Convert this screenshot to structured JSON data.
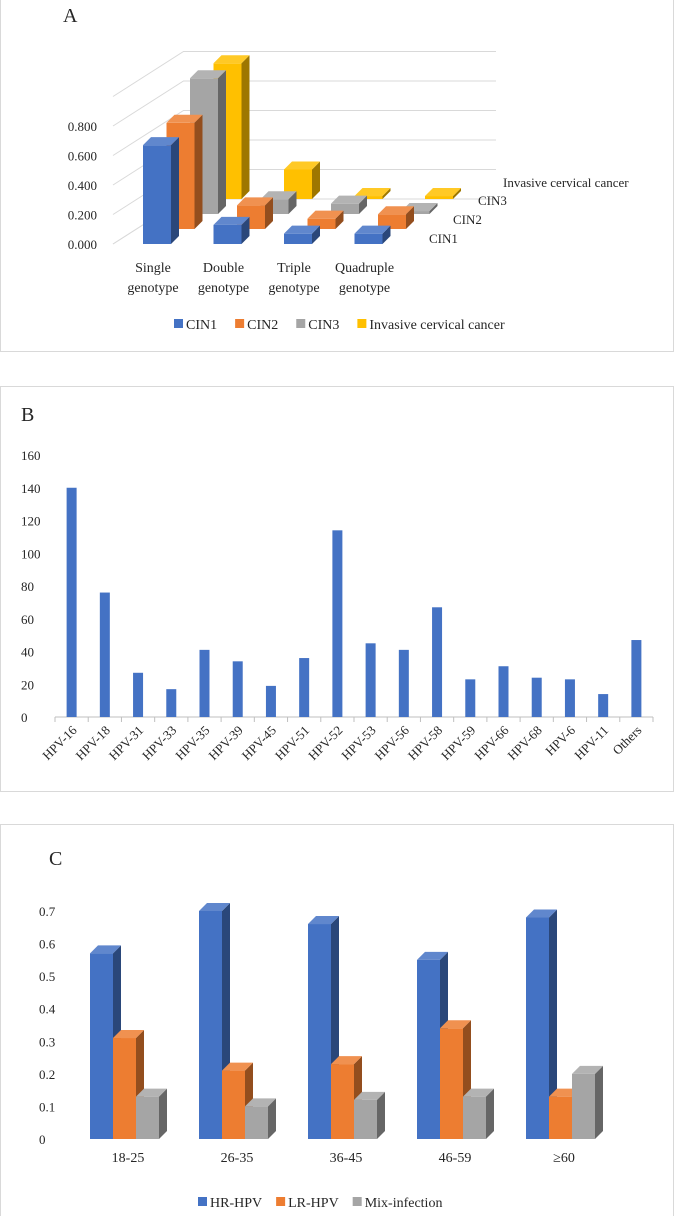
{
  "panels": {
    "a_label": "A",
    "b_label": "B",
    "c_label": "C"
  },
  "colors": {
    "blue": "#4472c4",
    "orange": "#ed7d31",
    "gray": "#a5a5a5",
    "gold": "#ffc000"
  },
  "chart_data": [
    {
      "type": "bar",
      "title": "",
      "categories": [
        [
          "Single",
          "genotype"
        ],
        [
          "Double",
          "genotype"
        ],
        [
          "Triple",
          "genotype"
        ],
        [
          "Quadruple",
          "genotype"
        ]
      ],
      "series": [
        {
          "name": "CIN1",
          "values": [
            0.67,
            0.13,
            0.07,
            0.07
          ],
          "color": "#4472c4"
        },
        {
          "name": "CIN2",
          "values": [
            0.72,
            0.16,
            0.07,
            0.1
          ],
          "color": "#ed7d31"
        },
        {
          "name": "CIN3",
          "values": [
            0.92,
            0.1,
            0.07,
            0.02
          ],
          "color": "#a5a5a5"
        },
        {
          "name": "Invasive cervical cancer",
          "values": [
            0.92,
            0.2,
            0.02,
            0.02
          ],
          "color": "#ffc000"
        }
      ],
      "depth_labels": [
        "CIN1",
        "CIN2",
        "CIN3",
        "Invasive cervical cancer"
      ],
      "ytick_labels": [
        "0.000",
        "0.200",
        "0.400",
        "0.600",
        "0.800"
      ],
      "ylim": [
        0,
        1.0
      ],
      "legend": "bottom",
      "grid": true,
      "three_d": true
    },
    {
      "type": "bar",
      "title": "",
      "categories": [
        "HPV-16",
        "HPV-18",
        "HPV-31",
        "HPV-33",
        "HPV-35",
        "HPV-39",
        "HPV-45",
        "HPV-51",
        "HPV-52",
        "HPV-53",
        "HPV-56",
        "HPV-58",
        "HPV-59",
        "HPV-66",
        "HPV-68",
        "HPV-6",
        "HPV-11",
        "Others"
      ],
      "values": [
        140,
        76,
        27,
        17,
        41,
        34,
        19,
        36,
        114,
        45,
        41,
        67,
        23,
        31,
        24,
        23,
        14,
        47
      ],
      "color": "#4472c4",
      "ytick_labels": [
        "0",
        "20",
        "40",
        "60",
        "80",
        "100",
        "120",
        "140",
        "160"
      ],
      "ylim": [
        0,
        160
      ],
      "grid": false
    },
    {
      "type": "bar",
      "title": "",
      "categories": [
        "18-25",
        "26-35",
        "36-45",
        "46-59",
        "≥60"
      ],
      "series": [
        {
          "name": "HR-HPV",
          "values": [
            0.57,
            0.7,
            0.66,
            0.55,
            0.68
          ],
          "color": "#4472c4"
        },
        {
          "name": "LR-HPV",
          "values": [
            0.31,
            0.21,
            0.23,
            0.34,
            0.13
          ],
          "color": "#ed7d31"
        },
        {
          "name": "Mix-infection",
          "values": [
            0.13,
            0.1,
            0.12,
            0.13,
            0.2
          ],
          "color": "#a5a5a5"
        }
      ],
      "ytick_labels": [
        "0",
        "0.1",
        "0.2",
        "0.3",
        "0.4",
        "0.5",
        "0.6",
        "0.7"
      ],
      "ylim": [
        0,
        0.7
      ],
      "legend": "bottom",
      "grid": false,
      "three_d": true
    }
  ]
}
